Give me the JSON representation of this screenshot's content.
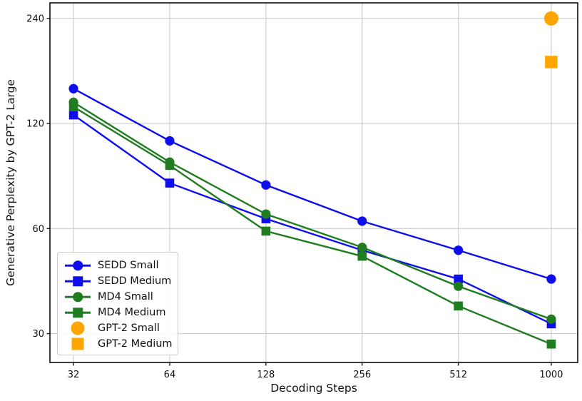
{
  "figure": {
    "background": "#ffffff",
    "spine_color": "#1a1a1a",
    "grid_color": "#cccccc",
    "text_color": "#111111"
  },
  "chart_data": {
    "type": "line",
    "title": "",
    "xlabel": "Decoding Steps",
    "ylabel": "Generative Perplexity by GPT-2 Large",
    "x_scale": "log2",
    "y_scale": "log2",
    "grid": true,
    "legend_position": "lower left",
    "x_ticks": [
      32,
      64,
      128,
      256,
      512,
      1000
    ],
    "y_ticks": [
      30,
      60,
      120,
      240
    ],
    "xlim": [
      27,
      1210
    ],
    "ylim": [
      24.8,
      266
    ],
    "series": [
      {
        "name": "SEDD Small",
        "color": "#0d0dee",
        "marker": "circle",
        "line": true,
        "x": [
          32,
          64,
          128,
          256,
          512,
          1000
        ],
        "y": [
          151,
          107,
          80,
          63,
          52,
          43
        ]
      },
      {
        "name": "SEDD Medium",
        "color": "#0d0dee",
        "marker": "square",
        "line": true,
        "x": [
          32,
          64,
          128,
          256,
          512,
          1000
        ],
        "y": [
          127,
          81,
          64,
          52,
          43,
          32
        ]
      },
      {
        "name": "MD4 Small",
        "color": "#1f7d1f",
        "marker": "circle",
        "line": true,
        "x": [
          32,
          64,
          128,
          256,
          512,
          1000
        ],
        "y": [
          138,
          93,
          66,
          53,
          41,
          33
        ]
      },
      {
        "name": "MD4 Medium",
        "color": "#1f7d1f",
        "marker": "square",
        "line": true,
        "x": [
          32,
          64,
          128,
          256,
          512,
          1000
        ],
        "y": [
          134,
          91,
          59,
          50,
          36,
          28
        ]
      },
      {
        "name": "GPT-2 Small",
        "color": "#ffa500",
        "marker": "circle",
        "line": false,
        "x": [
          1000
        ],
        "y": [
          240
        ]
      },
      {
        "name": "GPT-2 Medium",
        "color": "#ffa500",
        "marker": "square",
        "line": false,
        "x": [
          1000
        ],
        "y": [
          180
        ]
      }
    ]
  }
}
